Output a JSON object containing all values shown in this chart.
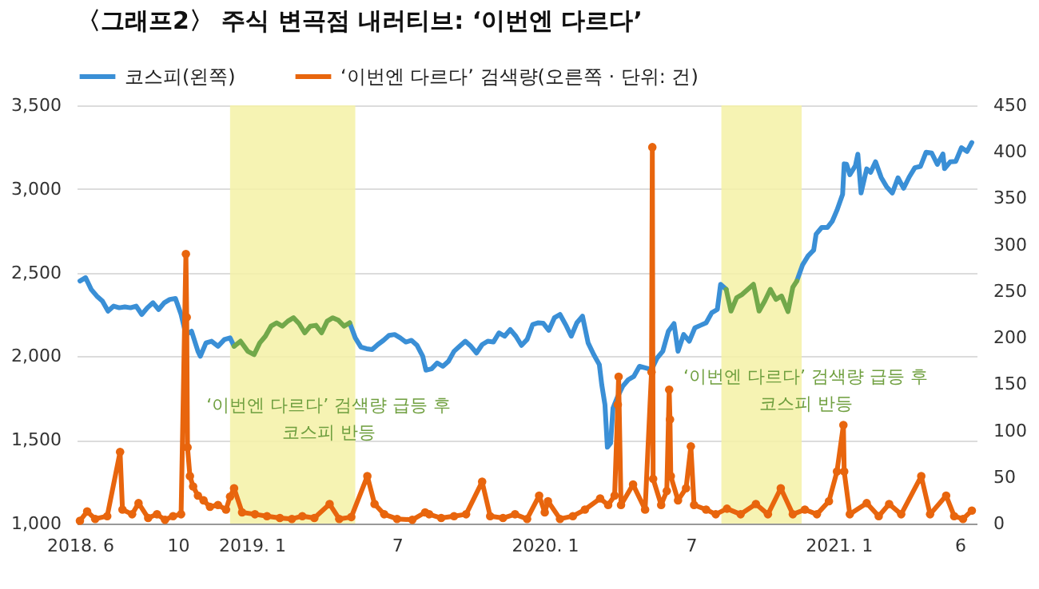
{
  "chart_data": {
    "type": "line",
    "title": "〈그래프2〉 주식 변곡점 내러티브: ‘이번엔 다르다’",
    "xlim": [
      "2018-05-28",
      "2021-06-22"
    ],
    "xticks": [
      {
        "value": "2018-06-01",
        "label": "2018. 6"
      },
      {
        "value": "2018-10-01",
        "label": "10"
      },
      {
        "value": "2019-01-01",
        "label": "2019. 1"
      },
      {
        "value": "2019-07-01",
        "label": "7"
      },
      {
        "value": "2020-01-01",
        "label": "2020. 1"
      },
      {
        "value": "2020-07-01",
        "label": "7"
      },
      {
        "value": "2021-01-01",
        "label": "2021. 1"
      },
      {
        "value": "2021-06-01",
        "label": "6"
      }
    ],
    "ylim": [
      1000,
      3500
    ],
    "yticks": [
      {
        "value": 1000,
        "label": "1,000"
      },
      {
        "value": 1500,
        "label": "1,500"
      },
      {
        "value": 2000,
        "label": "2,000"
      },
      {
        "value": 2500,
        "label": "2,500"
      },
      {
        "value": 3000,
        "label": "3,000"
      },
      {
        "value": 3500,
        "label": "3,500"
      }
    ],
    "y2lim": [
      0,
      450
    ],
    "y2ticks": [
      0,
      50,
      100,
      150,
      200,
      250,
      300,
      350,
      400,
      450
    ],
    "grid": "y",
    "legend": "top",
    "bands": [
      {
        "axis": "x",
        "from": "2018-12-05",
        "to": "2019-05-10",
        "color": "#f4f1a6"
      },
      {
        "axis": "x",
        "from": "2020-08-08",
        "to": "2020-11-16",
        "color": "#f4f1a6"
      }
    ],
    "annotations": [
      "‘이번엔 다르다’ 검색량 급등 후\n코스피 반등",
      "‘이번엔 다르다’ 검색량 급등 후\n코스피 반등"
    ],
    "series": [
      {
        "name": "코스피(왼쪽)",
        "color": "#3a8fd6",
        "x": [
          "2018-06-01",
          "2018-06-08",
          "2018-06-15",
          "2018-06-22",
          "2018-06-29",
          "2018-07-06",
          "2018-07-13",
          "2018-07-20",
          "2018-07-27",
          "2018-08-03",
          "2018-08-10",
          "2018-08-17",
          "2018-08-24",
          "2018-08-31",
          "2018-09-07",
          "2018-09-14",
          "2018-09-21",
          "2018-09-28",
          "2018-10-05",
          "2018-10-11",
          "2018-10-18",
          "2018-10-26",
          "2018-10-29",
          "2018-11-05",
          "2018-11-12",
          "2018-11-20",
          "2018-11-28",
          "2018-12-05",
          "2018-12-10",
          "2019-02-01",
          "2019-05-03",
          "2019-05-10",
          "2019-05-17",
          "2019-05-24",
          "2019-05-31",
          "2019-06-07",
          "2019-06-14",
          "2019-06-21",
          "2019-06-28",
          "2019-07-05",
          "2019-07-12",
          "2019-07-19",
          "2019-07-26",
          "2019-08-02",
          "2019-08-06",
          "2019-08-13",
          "2019-08-20",
          "2019-08-27",
          "2019-09-03",
          "2019-09-10",
          "2019-09-17",
          "2019-09-24",
          "2019-10-01",
          "2019-10-08",
          "2019-10-15",
          "2019-10-22",
          "2019-10-29",
          "2019-11-05",
          "2019-11-12",
          "2019-11-19",
          "2019-11-26",
          "2019-12-03",
          "2019-12-10",
          "2019-12-17",
          "2019-12-24",
          "2019-12-30",
          "2020-01-06",
          "2020-01-13",
          "2020-01-20",
          "2020-01-28",
          "2020-02-03",
          "2020-02-10",
          "2020-02-17",
          "2020-02-24",
          "2020-03-02",
          "2020-03-09",
          "2020-03-12",
          "2020-03-16",
          "2020-03-19",
          "2020-03-23",
          "2020-03-26",
          "2020-03-31",
          "2020-04-07",
          "2020-04-14",
          "2020-04-21",
          "2020-04-28",
          "2020-05-06",
          "2020-05-13",
          "2020-05-20",
          "2020-05-27",
          "2020-06-03",
          "2020-06-10",
          "2020-06-15",
          "2020-06-22",
          "2020-06-29",
          "2020-07-06",
          "2020-07-13",
          "2020-07-20",
          "2020-07-27",
          "2020-08-03",
          "2020-08-07",
          "2020-08-14",
          "2020-10-01",
          "2020-11-10",
          "2020-11-17",
          "2020-11-24",
          "2020-12-01",
          "2020-12-04",
          "2020-12-11",
          "2020-12-18",
          "2020-12-24",
          "2020-12-30",
          "2021-01-06",
          "2021-01-08",
          "2021-01-11",
          "2021-01-15",
          "2021-01-22",
          "2021-01-25",
          "2021-01-29",
          "2021-02-05",
          "2021-02-10",
          "2021-02-16",
          "2021-02-23",
          "2021-03-02",
          "2021-03-09",
          "2021-03-16",
          "2021-03-23",
          "2021-03-30",
          "2021-04-06",
          "2021-04-13",
          "2021-04-20",
          "2021-04-27",
          "2021-05-04",
          "2021-05-11",
          "2021-05-13",
          "2021-05-20",
          "2021-05-27",
          "2021-06-03",
          "2021-06-10",
          "2021-06-16"
        ],
        "values": [
          2450,
          2470,
          2400,
          2360,
          2330,
          2270,
          2300,
          2290,
          2295,
          2290,
          2300,
          2250,
          2290,
          2320,
          2280,
          2320,
          2340,
          2345,
          2250,
          2130,
          2150,
          2030,
          2000,
          2080,
          2090,
          2060,
          2100,
          2110,
          2060,
          null,
          2200,
          2110,
          2055,
          2045,
          2040,
          2070,
          2095,
          2125,
          2130,
          2110,
          2085,
          2095,
          2065,
          2000,
          1917,
          1925,
          1960,
          1940,
          1970,
          2030,
          2060,
          2090,
          2060,
          2020,
          2070,
          2090,
          2085,
          2140,
          2120,
          2160,
          2120,
          2065,
          2100,
          2190,
          2200,
          2198,
          2155,
          2230,
          2250,
          2180,
          2120,
          2200,
          2240,
          2080,
          2010,
          1950,
          1830,
          1710,
          1457,
          1480,
          1690,
          1750,
          1820,
          1860,
          1880,
          1940,
          1930,
          1920,
          1990,
          2030,
          2150,
          2195,
          2030,
          2130,
          2090,
          2170,
          2185,
          2200,
          2260,
          2280,
          2430,
          2400,
          null,
          2450,
          2545,
          2600,
          2635,
          2730,
          2770,
          2770,
          2806,
          2873,
          2968,
          3150,
          3148,
          3085,
          3140,
          3208,
          2976,
          3120,
          3100,
          3163,
          3070,
          3012,
          2976,
          3067,
          3004,
          3072,
          3127,
          3135,
          3220,
          3215,
          3147,
          3209,
          3122,
          3162,
          3165,
          3247,
          3224,
          3278
        ]
      },
      {
        "color": "#72a84a",
        "x": [
          "2018-12-10",
          "2018-12-18",
          "2018-12-27",
          "2019-01-04",
          "2019-01-11",
          "2019-01-18",
          "2019-01-25",
          "2019-02-01",
          "2019-02-08",
          "2019-02-15",
          "2019-02-22",
          "2019-03-01",
          "2019-03-08",
          "2019-03-15",
          "2019-03-22",
          "2019-03-29",
          "2019-04-05",
          "2019-04-12",
          "2019-04-19",
          "2019-04-26",
          "2019-05-03"
        ],
        "values": [
          2060,
          2090,
          2030,
          2010,
          2080,
          2120,
          2180,
          2200,
          2180,
          2210,
          2230,
          2195,
          2140,
          2180,
          2185,
          2140,
          2210,
          2230,
          2215,
          2180,
          2200
        ]
      },
      {
        "color": "#72a84a",
        "x": [
          "2020-08-14",
          "2020-08-20",
          "2020-08-27",
          "2020-09-03",
          "2020-09-10",
          "2020-09-17",
          "2020-09-24",
          "2020-10-01",
          "2020-10-08",
          "2020-10-15",
          "2020-10-22",
          "2020-10-30",
          "2020-11-05",
          "2020-11-10"
        ],
        "values": [
          2400,
          2270,
          2350,
          2370,
          2400,
          2430,
          2270,
          2330,
          2400,
          2340,
          2360,
          2267,
          2413,
          2450
        ]
      },
      {
        "name": "‘이번엔 다르다’ 검색량(오른쪽 · 단위: 건)",
        "color": "#e8650d",
        "axis": "y2",
        "marker": "circle",
        "x": [
          "2018-06-01",
          "2018-06-10",
          "2018-06-20",
          "2018-07-05",
          "2018-07-21",
          "2018-07-24",
          "2018-08-05",
          "2018-08-13",
          "2018-08-25",
          "2018-09-05",
          "2018-09-15",
          "2018-09-25",
          "2018-10-05",
          "2018-10-11",
          "2018-10-12",
          "2018-10-13",
          "2018-10-16",
          "2018-10-20",
          "2018-10-26",
          "2018-11-02",
          "2018-11-10",
          "2018-11-20",
          "2018-11-30",
          "2018-12-05",
          "2018-12-10",
          "2018-12-20",
          "2019-01-05",
          "2019-01-20",
          "2019-02-05",
          "2019-02-20",
          "2019-03-05",
          "2019-03-20",
          "2019-04-08",
          "2019-04-20",
          "2019-05-05",
          "2019-05-25",
          "2019-06-03",
          "2019-06-15",
          "2019-07-01",
          "2019-07-20",
          "2019-08-05",
          "2019-08-10",
          "2019-08-25",
          "2019-09-10",
          "2019-09-25",
          "2019-10-15",
          "2019-10-25",
          "2019-11-10",
          "2019-11-25",
          "2019-12-10",
          "2019-12-25",
          "2020-01-01",
          "2020-01-05",
          "2020-01-20",
          "2020-02-05",
          "2020-02-20",
          "2020-03-10",
          "2020-03-20",
          "2020-03-28",
          "2020-04-01",
          "2020-04-02",
          "2020-04-05",
          "2020-04-20",
          "2020-05-05",
          "2020-05-13",
          "2020-05-14",
          "2020-05-15",
          "2020-05-25",
          "2020-06-01",
          "2020-06-04",
          "2020-06-05",
          "2020-06-06",
          "2020-06-15",
          "2020-06-25",
          "2020-07-01",
          "2020-07-05",
          "2020-07-20",
          "2020-08-01",
          "2020-08-15",
          "2020-09-01",
          "2020-09-20",
          "2020-10-05",
          "2020-10-21",
          "2020-11-05",
          "2020-11-20",
          "2020-12-05",
          "2020-12-20",
          "2020-12-30",
          "2021-01-07",
          "2021-01-08",
          "2021-01-15",
          "2021-02-05",
          "2021-02-20",
          "2021-03-05",
          "2021-03-20",
          "2021-04-14",
          "2021-04-25",
          "2021-05-15",
          "2021-05-25",
          "2021-06-05",
          "2021-06-16"
        ],
        "values": [
          3,
          13,
          5,
          8,
          77,
          15,
          10,
          22,
          6,
          10,
          4,
          8,
          10,
          290,
          222,
          82,
          51,
          40,
          30,
          25,
          18,
          20,
          15,
          29,
          38,
          12,
          10,
          8,
          6,
          5,
          8,
          6,
          21,
          5,
          7,
          51,
          21,
          10,
          5,
          4,
          12,
          10,
          6,
          8,
          10,
          45,
          8,
          6,
          10,
          5,
          30,
          12,
          24,
          5,
          8,
          15,
          27,
          20,
          30,
          128,
          158,
          20,
          42,
          15,
          163,
          405,
          48,
          20,
          35,
          144,
          112,
          51,
          25,
          38,
          83,
          20,
          15,
          10,
          16,
          10,
          21,
          10,
          38,
          10,
          15,
          10,
          24,
          56,
          106,
          56,
          10,
          22,
          8,
          21,
          10,
          51,
          10,
          30,
          8,
          5,
          14
        ]
      }
    ]
  }
}
